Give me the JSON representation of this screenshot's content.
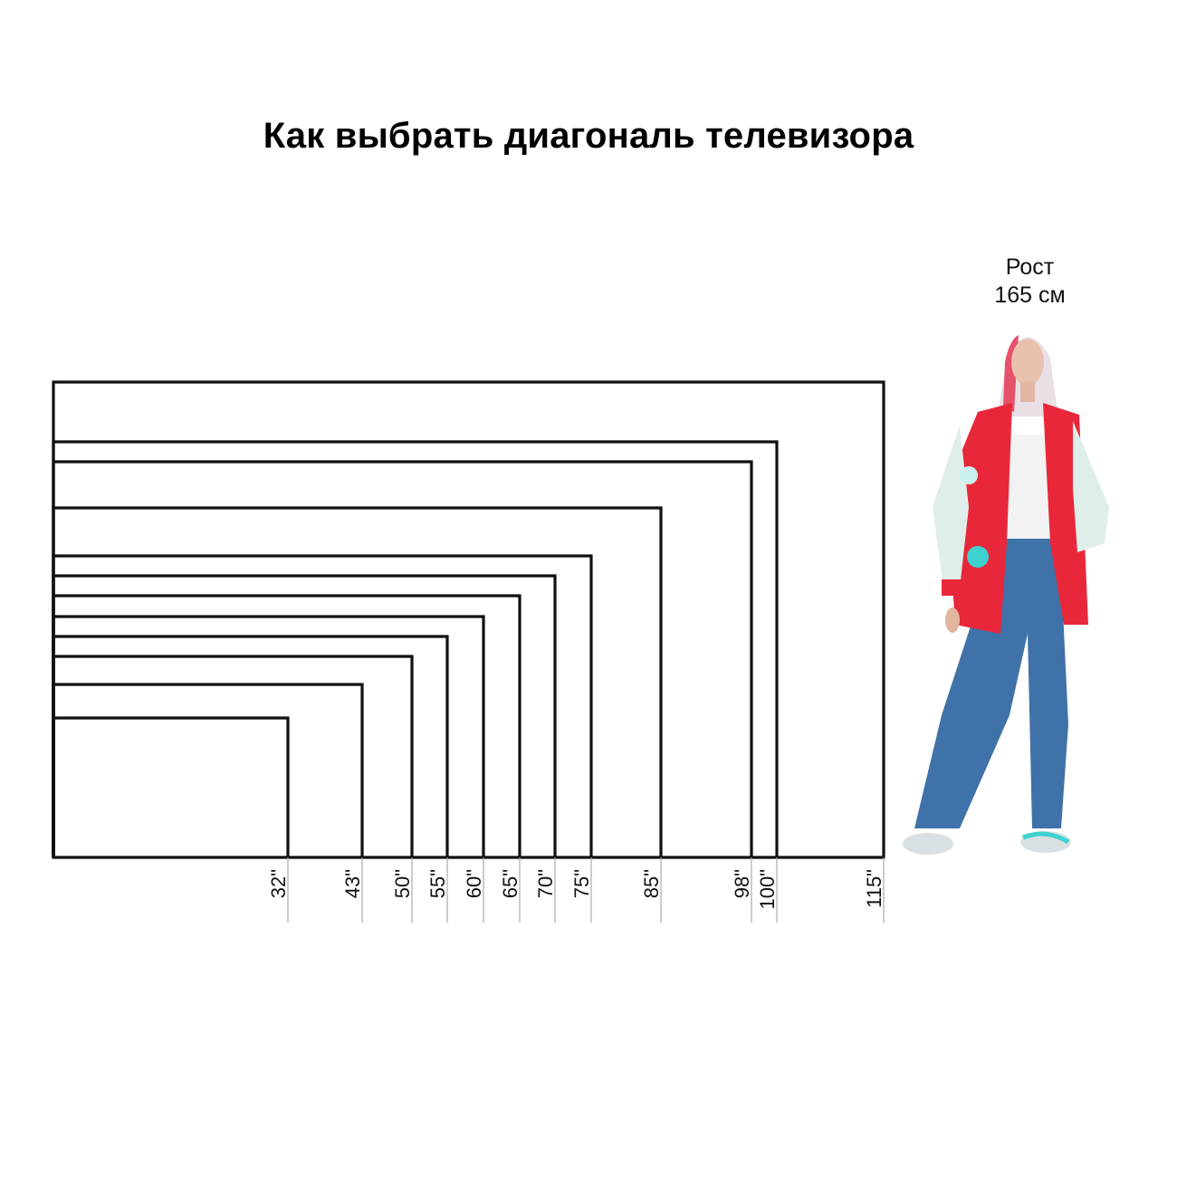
{
  "title": "Как выбрать диагональ телевизора",
  "person": {
    "height_line1": "Рост",
    "height_line2": "165 см"
  },
  "chart_data": {
    "type": "diagram",
    "aspect_ratio": "16:9",
    "unit_symbol": "\"",
    "diagonals": [
      32,
      43,
      50,
      55,
      60,
      65,
      70,
      75,
      85,
      98,
      100,
      115
    ],
    "labels": [
      "32\"",
      "43\"",
      "50\"",
      "55\"",
      "60\"",
      "65\"",
      "70\"",
      "75\"",
      "85\"",
      "98\"",
      "100\"",
      "115\""
    ]
  },
  "colors": {
    "outline": "#111111",
    "tick": "#aaaaaa",
    "jacket": "#e8283a",
    "jeans": "#3f72a8",
    "sleeve": "#dfeee8"
  }
}
